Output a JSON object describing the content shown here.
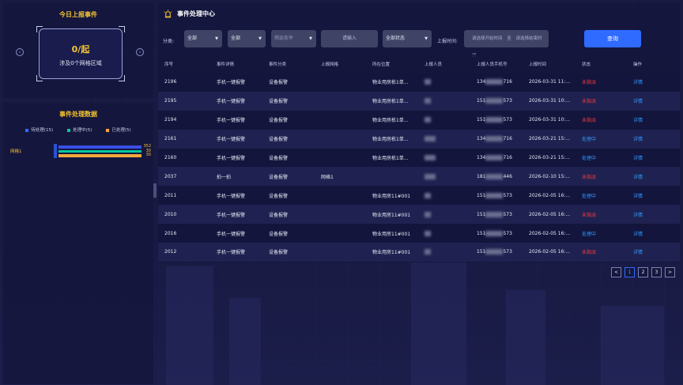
{
  "left_top": {
    "title": "今日上报事件",
    "count_text": "0/起",
    "sub_text": "涉及0个网格区域",
    "prev_icon": "‹",
    "next_icon": "›"
  },
  "left_bottom": {
    "title": "事件处理数据",
    "legend": [
      {
        "label": "待处理(15)",
        "color": "#2f6bff"
      },
      {
        "label": "处理中(5)",
        "color": "#00c8a0"
      },
      {
        "label": "已处理(5)",
        "color": "#f4a73c"
      }
    ],
    "bars": {
      "label": "网格1",
      "values": [
        {
          "value": "352",
          "fraction": 0.94,
          "color": "#3a4fe6"
        },
        {
          "value": "30",
          "fraction": 0.94,
          "color": "#00c8a0"
        },
        {
          "value": "30",
          "fraction": 0.94,
          "color": "#f4a73c"
        }
      ]
    }
  },
  "main": {
    "title": "事件处理中心",
    "filters": {
      "category_label": "分类:",
      "category1": "全部",
      "category2": "全部",
      "condition_placeholder": "筛选条件",
      "keyword_placeholder": "请输入",
      "status": "全部状态",
      "time_label": "上报时间:",
      "start_placeholder": "请选择开始时间",
      "to_text": "至",
      "end_placeholder": "请选择结束时间",
      "query_label": "查询"
    },
    "columns": [
      "序号",
      "事件详情",
      "事件分类",
      "上报网格",
      "所在位置",
      "上报人员",
      "上报人员手机号",
      "上报时间",
      "状态",
      "操作"
    ],
    "rows": [
      {
        "id": "2196",
        "detail": "手机一键报警",
        "category": "设备报警",
        "grid": "",
        "location": "物业用房栋1单...",
        "reporter": "▒",
        "phone_pre": "134",
        "phone_suf": "716",
        "time": "2026-03-31 11:...",
        "status": "未指派",
        "status_type": "red",
        "op": "详情"
      },
      {
        "id": "2195",
        "detail": "手机一键报警",
        "category": "设备报警",
        "grid": "",
        "location": "物业用房栋1单...",
        "reporter": "▒",
        "phone_pre": "151",
        "phone_suf": "573",
        "time": "2026-03-31 10:...",
        "status": "未指派",
        "status_type": "red",
        "op": "详情"
      },
      {
        "id": "2194",
        "detail": "手机一键报警",
        "category": "设备报警",
        "grid": "",
        "location": "物业用房栋1单...",
        "reporter": "▒",
        "phone_pre": "151",
        "phone_suf": "573",
        "time": "2026-03-31 10:...",
        "status": "未指派",
        "status_type": "red",
        "op": "详情"
      },
      {
        "id": "2161",
        "detail": "手机一键报警",
        "category": "设备报警",
        "grid": "",
        "location": "物业用房栋1单...",
        "reporter": "▒",
        "phone_pre": "134",
        "phone_suf": "716",
        "time": "2026-03-21 15:...",
        "status": "处理中",
        "status_type": "blue",
        "op": "详情"
      },
      {
        "id": "2160",
        "detail": "手机一键报警",
        "category": "设备报警",
        "grid": "",
        "location": "物业用房栋1单...",
        "reporter": "▒",
        "phone_pre": "134",
        "phone_suf": "716",
        "time": "2026-03-21 15:...",
        "status": "处理中",
        "status_type": "blue",
        "op": "详情"
      },
      {
        "id": "2037",
        "detail": "拍一拍",
        "category": "设备报警",
        "grid": "网格1",
        "location": "",
        "reporter": "▒",
        "phone_pre": "181",
        "phone_suf": "446",
        "time": "2026-02-10 15:...",
        "status": "未指派",
        "status_type": "red",
        "op": "详情"
      },
      {
        "id": "2011",
        "detail": "手机一键报警",
        "category": "设备报警",
        "grid": "",
        "location": "物业用房11#001",
        "reporter": "▒",
        "phone_pre": "151",
        "phone_suf": "573",
        "time": "2026-02-05 16:...",
        "status": "处理中",
        "status_type": "blue",
        "op": "详情"
      },
      {
        "id": "2010",
        "detail": "手机一键报警",
        "category": "设备报警",
        "grid": "",
        "location": "物业用房11#001",
        "reporter": "▒",
        "phone_pre": "151",
        "phone_suf": "573",
        "time": "2026-02-05 16:...",
        "status": "未指派",
        "status_type": "red",
        "op": "详情"
      },
      {
        "id": "2016",
        "detail": "手机一键报警",
        "category": "设备报警",
        "grid": "",
        "location": "物业用房11#001",
        "reporter": "▒",
        "phone_pre": "151",
        "phone_suf": "573",
        "time": "2026-02-05 16:...",
        "status": "处理中",
        "status_type": "blue",
        "op": "详情"
      },
      {
        "id": "2012",
        "detail": "手机一键报警",
        "category": "设备报警",
        "grid": "",
        "location": "物业用房11#001",
        "reporter": "▒",
        "phone_pre": "151",
        "phone_suf": "573",
        "time": "2026-02-05 16:...",
        "status": "未指派",
        "status_type": "red",
        "op": "详情"
      }
    ]
  },
  "pager": {
    "prev": "<",
    "pages": [
      "1",
      "2",
      "3"
    ],
    "active": "1",
    "next": ">"
  },
  "colors": {
    "accent_yellow": "#f4c430",
    "primary_blue": "#2f6bff",
    "status_red": "#ff3b3b",
    "status_blue": "#2f9bff"
  }
}
